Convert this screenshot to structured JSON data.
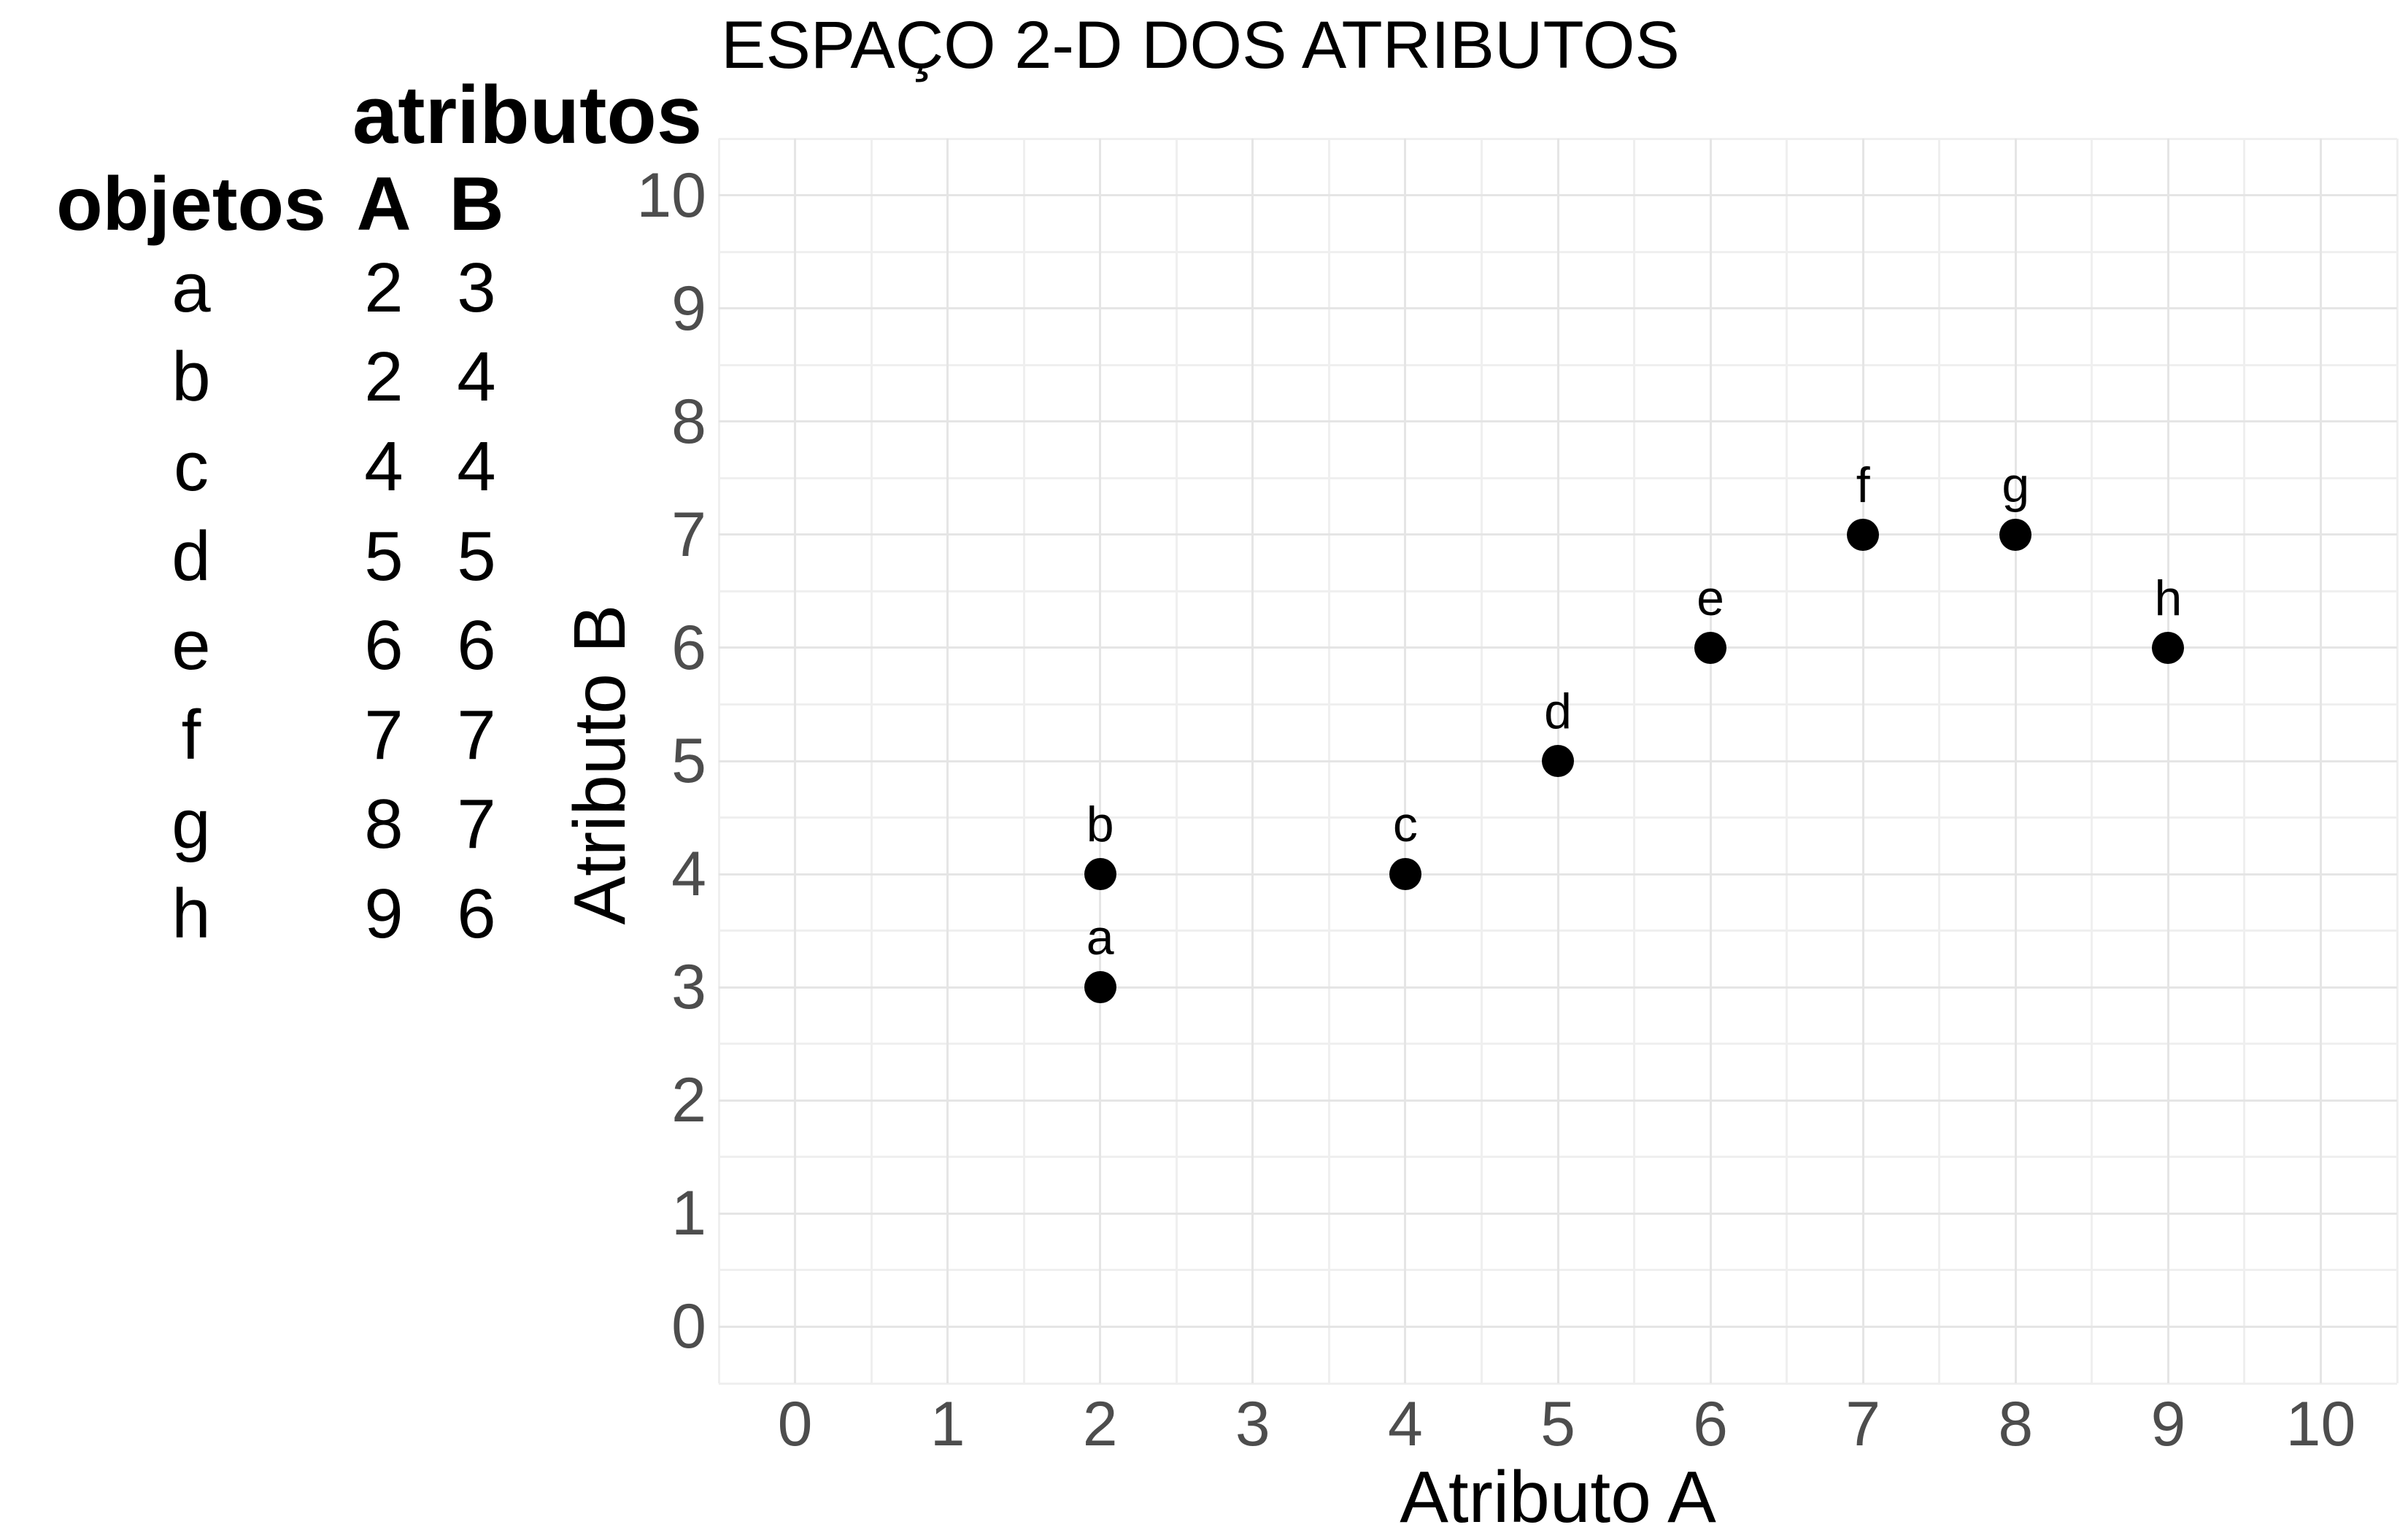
{
  "title": "ESPAÇO 2-D DOS ATRIBUTOS",
  "table": {
    "group_header": "atributos",
    "col_obj": "objetos",
    "col_a": "A",
    "col_b": "B",
    "rows": [
      {
        "obj": "a",
        "a": "2",
        "b": "3"
      },
      {
        "obj": "b",
        "a": "2",
        "b": "4"
      },
      {
        "obj": "c",
        "a": "4",
        "b": "4"
      },
      {
        "obj": "d",
        "a": "5",
        "b": "5"
      },
      {
        "obj": "e",
        "a": "6",
        "b": "6"
      },
      {
        "obj": "f",
        "a": "7",
        "b": "7"
      },
      {
        "obj": "g",
        "a": "8",
        "b": "7"
      },
      {
        "obj": "h",
        "a": "9",
        "b": "6"
      }
    ]
  },
  "chart_data": {
    "type": "scatter",
    "title": "ESPAÇO 2-D DOS ATRIBUTOS",
    "xlabel": "Atributo A",
    "ylabel": "Atributo B",
    "xlim": [
      -0.5,
      10.5
    ],
    "ylim": [
      -0.5,
      10.5
    ],
    "x_ticks": [
      0,
      1,
      2,
      3,
      4,
      5,
      6,
      7,
      8,
      9,
      10
    ],
    "y_ticks": [
      0,
      1,
      2,
      3,
      4,
      5,
      6,
      7,
      8,
      9,
      10
    ],
    "grid": "major and minor, no axis lines, no tick marks",
    "legend": "none",
    "points": [
      {
        "label": "a",
        "x": 2,
        "y": 3
      },
      {
        "label": "b",
        "x": 2,
        "y": 4
      },
      {
        "label": "c",
        "x": 4,
        "y": 4
      },
      {
        "label": "d",
        "x": 5,
        "y": 5
      },
      {
        "label": "e",
        "x": 6,
        "y": 6
      },
      {
        "label": "f",
        "x": 7,
        "y": 7
      },
      {
        "label": "g",
        "x": 8,
        "y": 7
      },
      {
        "label": "h",
        "x": 9,
        "y": 6
      }
    ],
    "colors": {
      "point": "#000000",
      "tick_text": "#4d4d4d",
      "grid_major": "#e5e5e5",
      "grid_minor": "#efefef",
      "background": "#ffffff"
    }
  }
}
